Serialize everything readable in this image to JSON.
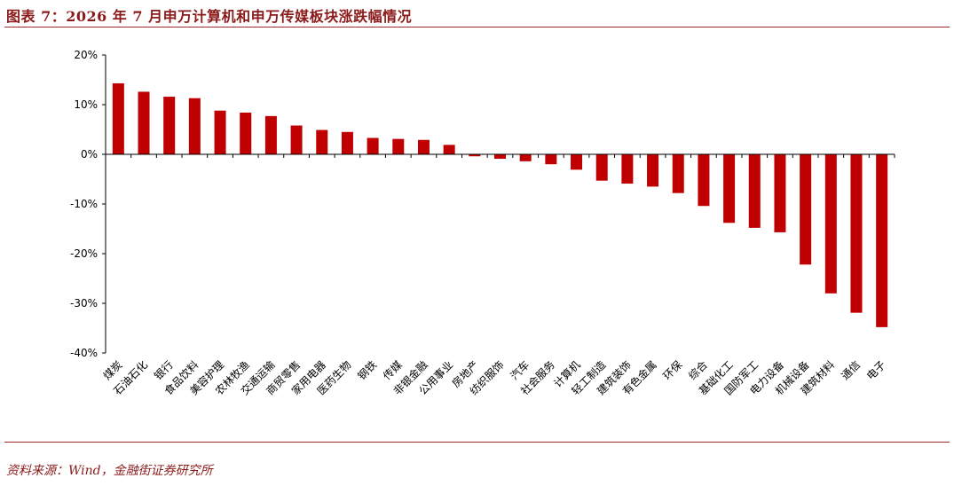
{
  "title": "图表 7：2026 年 7 月申万计算机和申万传媒板块涨跌幅情况",
  "source": "资料来源：Wind，金融街证券研究所",
  "chart_data": {
    "type": "bar",
    "title": "",
    "xlabel": "",
    "ylabel": "",
    "ylim": [
      -40,
      20
    ],
    "yticks": [
      20,
      10,
      0,
      -10,
      -20,
      -30,
      -40
    ],
    "ytick_labels": [
      "20%",
      "10%",
      "0%",
      "-10%",
      "-20%",
      "-30%",
      "-40%"
    ],
    "grid": false,
    "legend": "none",
    "bar_color": "#c00000",
    "categories": [
      "煤炭",
      "石油石化",
      "银行",
      "食品饮料",
      "美容护理",
      "农林牧渔",
      "交通运输",
      "商贸零售",
      "家用电器",
      "医药生物",
      "钢铁",
      "传媒",
      "非银金融",
      "公用事业",
      "房地产",
      "纺织服饰",
      "汽车",
      "社会服务",
      "计算机",
      "轻工制造",
      "建筑装饰",
      "有色金属",
      "环保",
      "综合",
      "基础化工",
      "国防军工",
      "电力设备",
      "机械设备",
      "建筑材料",
      "通信",
      "电子"
    ],
    "values": [
      14.3,
      12.6,
      11.6,
      11.3,
      8.8,
      8.4,
      7.7,
      5.8,
      4.9,
      4.5,
      3.3,
      3.1,
      2.9,
      1.9,
      -0.4,
      -0.9,
      -1.4,
      -2.0,
      -3.1,
      -5.3,
      -5.9,
      -6.5,
      -7.8,
      -10.4,
      -13.8,
      -14.8,
      -15.7,
      -22.2,
      -28.0,
      -31.9,
      -34.8
    ]
  }
}
